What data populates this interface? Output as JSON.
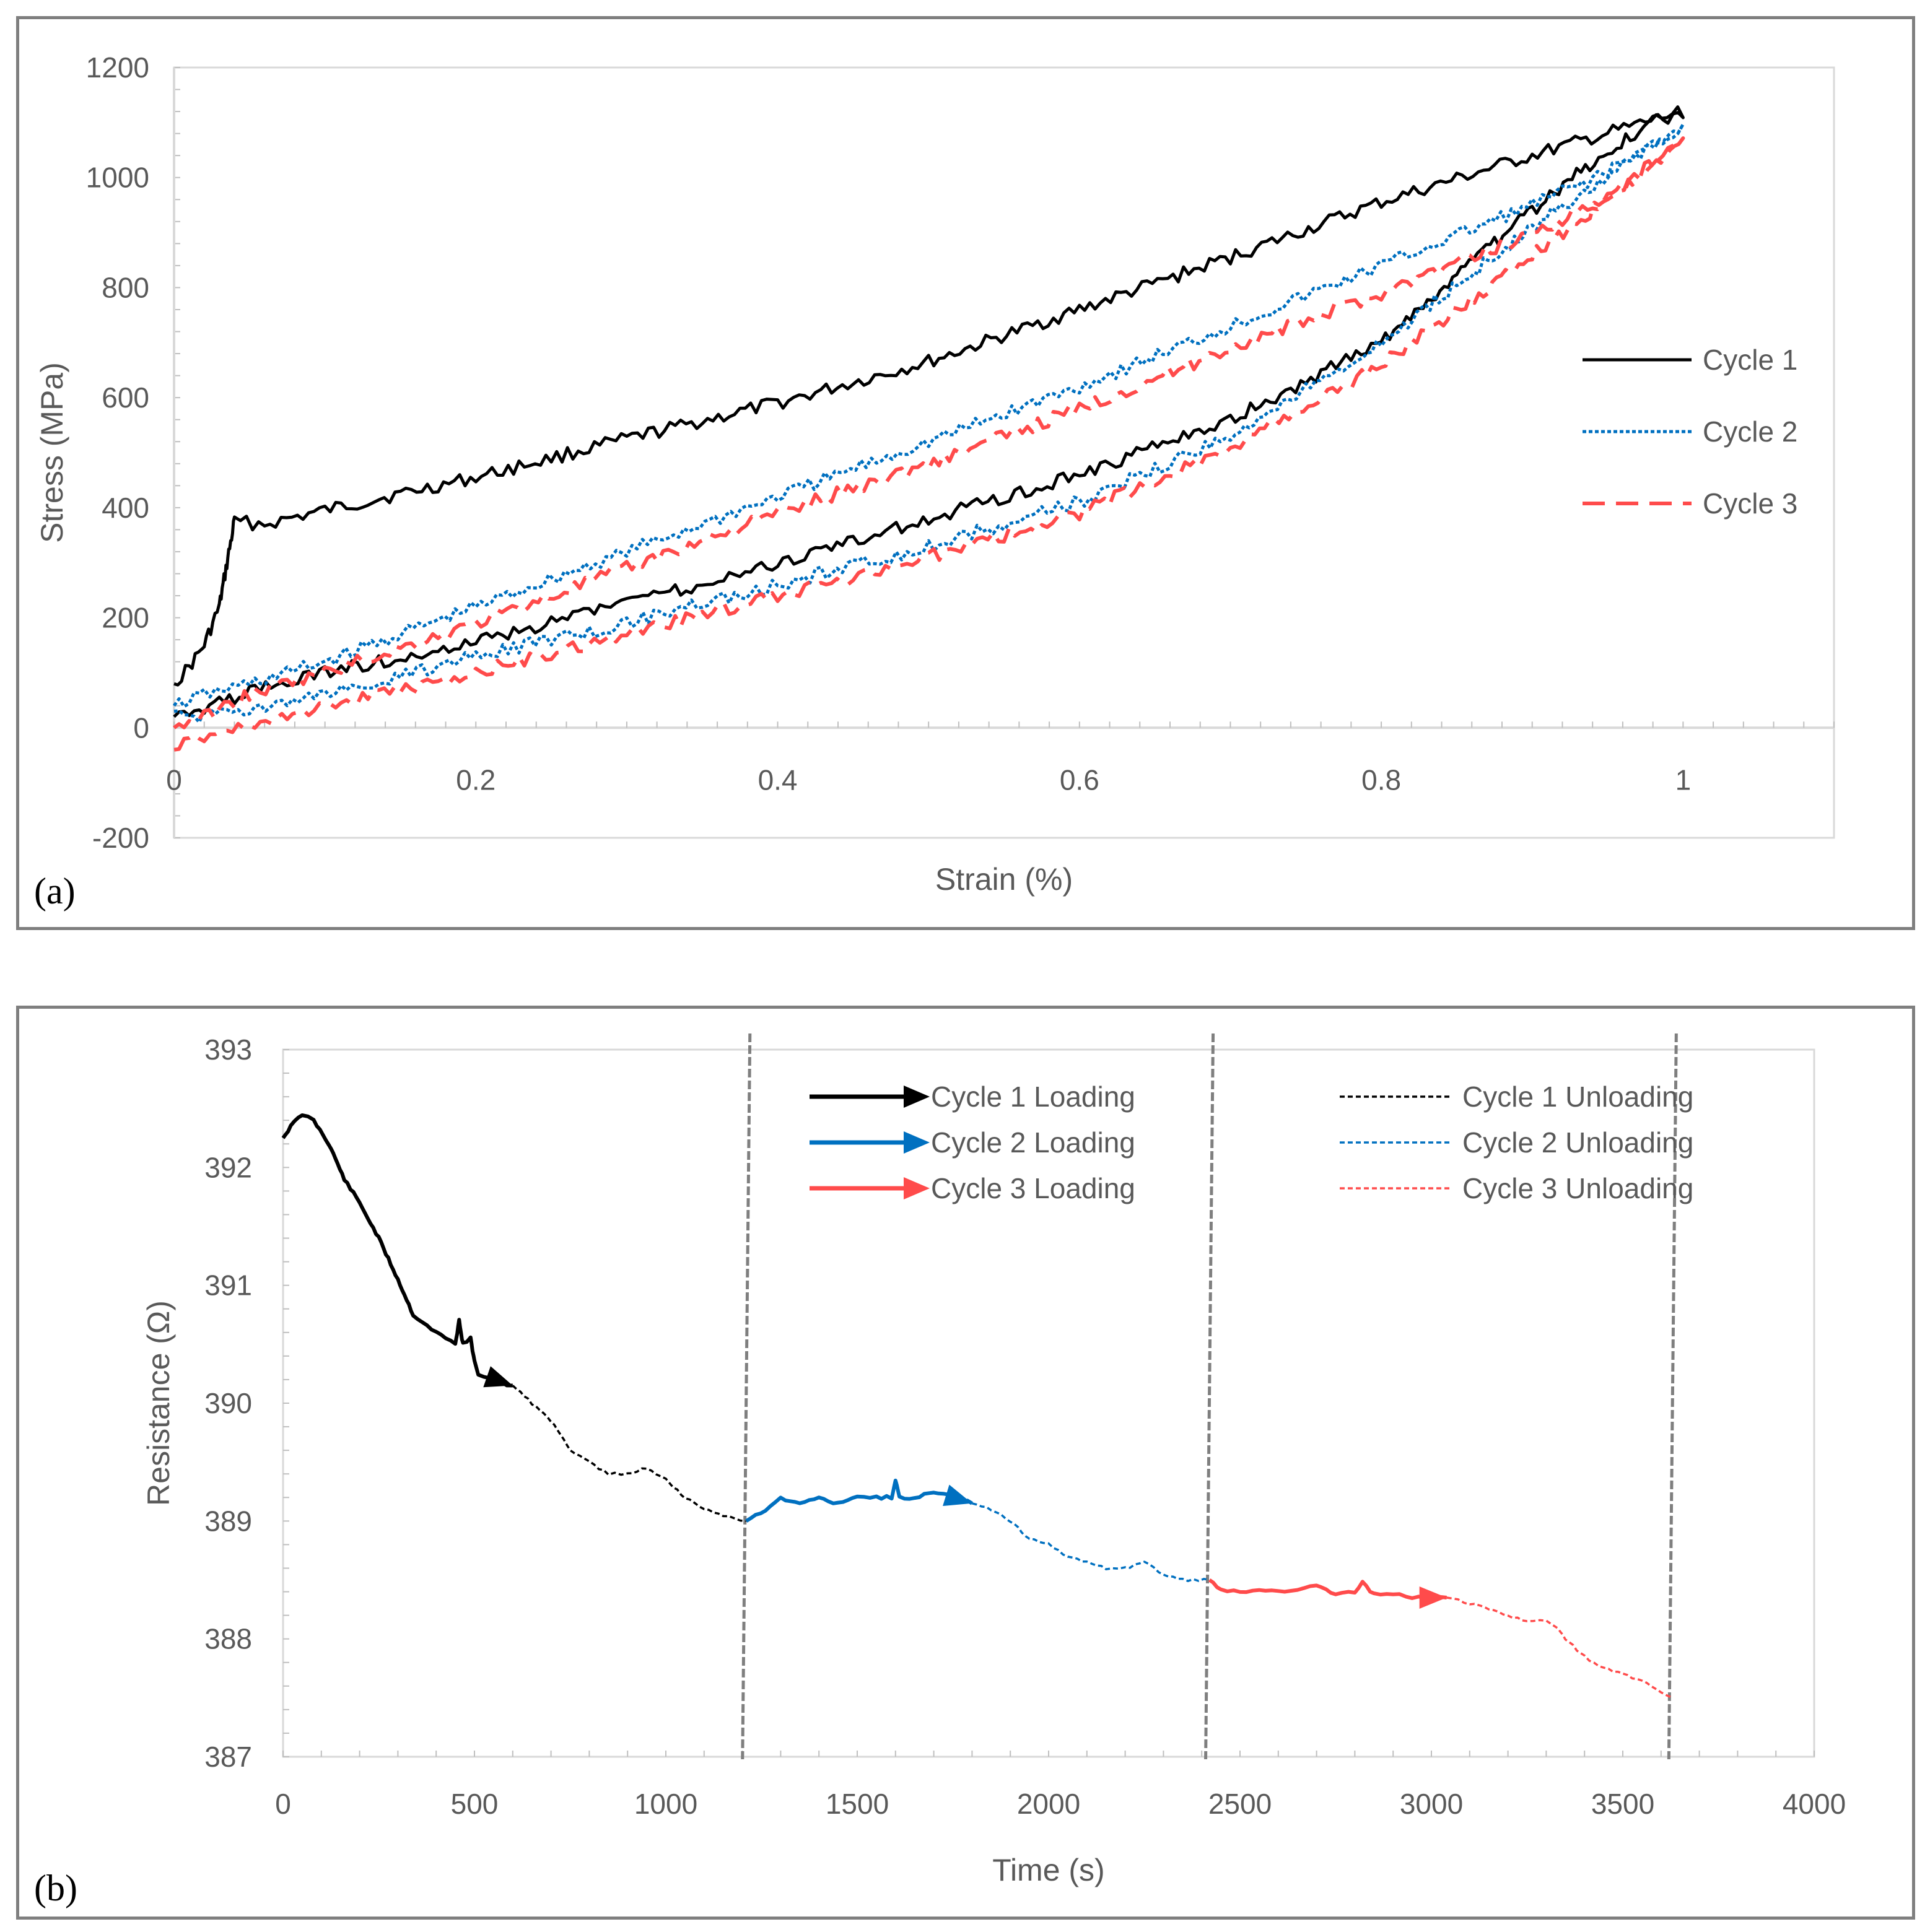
{
  "chart_data": [
    {
      "type": "line",
      "panel_label": "(a)",
      "title": "",
      "xlabel": "Strain (%)",
      "ylabel": "Stress (MPa)",
      "xlim": [
        0,
        1.1
      ],
      "ylim": [
        -200,
        1200
      ],
      "x_ticks": [
        0,
        0.2,
        0.4,
        0.6,
        0.8,
        1
      ],
      "x_tick_labels": [
        "0",
        "0.2",
        "0.4",
        "0.6",
        "0.8",
        "1"
      ],
      "y_ticks": [
        -200,
        0,
        200,
        400,
        600,
        800,
        1000,
        1200
      ],
      "y_tick_labels": [
        "-200",
        "0",
        "200",
        "400",
        "600",
        "800",
        "1000",
        "1200"
      ],
      "legend_position": "right",
      "series": [
        {
          "name": "Cycle 1",
          "color": "#000000",
          "style": "solid",
          "x": [
            0,
            0.01,
            0.02,
            0.03,
            0.04,
            0.06,
            0.1,
            0.2,
            0.3,
            0.4,
            0.5,
            0.6,
            0.7,
            0.8,
            0.9,
            0.95,
            1.0,
            0.98,
            0.95,
            0.9,
            0.85,
            0.8,
            0.7,
            0.6,
            0.5,
            0.4,
            0.3,
            0.2,
            0.1,
            0.05,
            0.02,
            0
          ],
          "y": [
            80,
            110,
            150,
            220,
            375,
            370,
            395,
            455,
            525,
            590,
            665,
            760,
            855,
            955,
            1040,
            1080,
            1120,
            1100,
            1050,
            940,
            820,
            700,
            560,
            460,
            380,
            300,
            225,
            155,
            100,
            65,
            35,
            20
          ]
        },
        {
          "name": "Cycle 2",
          "color": "#0070c0",
          "style": "dotted",
          "x": [
            0,
            0.02,
            0.05,
            0.1,
            0.2,
            0.3,
            0.4,
            0.5,
            0.6,
            0.7,
            0.8,
            0.9,
            0.95,
            1.0,
            0.98,
            0.95,
            0.9,
            0.8,
            0.7,
            0.6,
            0.5,
            0.4,
            0.3,
            0.2,
            0.1,
            0.05,
            0.02,
            0
          ],
          "y": [
            40,
            60,
            80,
            120,
            220,
            320,
            420,
            520,
            620,
            730,
            840,
            950,
            1010,
            1090,
            1060,
            1000,
            910,
            700,
            530,
            410,
            330,
            260,
            190,
            130,
            60,
            30,
            20,
            30
          ]
        },
        {
          "name": "Cycle 3",
          "color": "#ff4b4b",
          "style": "dashed",
          "x": [
            0,
            0.02,
            0.05,
            0.1,
            0.2,
            0.3,
            0.4,
            0.5,
            0.6,
            0.7,
            0.8,
            0.9,
            0.95,
            1.0,
            0.98,
            0.95,
            0.9,
            0.8,
            0.7,
            0.6,
            0.5,
            0.4,
            0.3,
            0.2,
            0.1,
            0.05,
            0.02,
            0
          ],
          "y": [
            0,
            20,
            60,
            100,
            190,
            290,
            390,
            480,
            580,
            690,
            790,
            900,
            960,
            1060,
            1030,
            960,
            860,
            660,
            510,
            390,
            310,
            240,
            170,
            100,
            40,
            0,
            -15,
            -40
          ]
        }
      ]
    },
    {
      "type": "line",
      "panel_label": "(b)",
      "title": "",
      "xlabel": "Time (s)",
      "ylabel": "Resistance (Ω)",
      "xlim": [
        0,
        4000
      ],
      "ylim": [
        387,
        393
      ],
      "x_ticks": [
        0,
        500,
        1000,
        1500,
        2000,
        2500,
        3000,
        3500,
        4000
      ],
      "x_tick_labels": [
        "0",
        "500",
        "1000",
        "1500",
        "2000",
        "2500",
        "3000",
        "3500",
        "4000"
      ],
      "y_ticks": [
        387,
        388,
        389,
        390,
        391,
        392,
        393
      ],
      "y_tick_labels": [
        "387",
        "388",
        "389",
        "390",
        "391",
        "392",
        "393"
      ],
      "legend_position": "top",
      "vlines": [
        1210,
        2420,
        3630
      ],
      "series": [
        {
          "name": "Cycle 1 Loading",
          "color": "#000000",
          "style": "solid-arrow",
          "x": [
            0,
            20,
            50,
            80,
            120,
            160,
            200,
            250,
            300,
            340,
            400,
            450,
            460,
            470,
            490,
            500,
            510,
            540,
            600
          ],
          "y": [
            392.25,
            392.35,
            392.45,
            392.4,
            392.2,
            391.9,
            391.7,
            391.4,
            391.05,
            390.75,
            390.6,
            390.5,
            390.7,
            390.5,
            390.55,
            390.35,
            390.25,
            390.2,
            390.15
          ]
        },
        {
          "name": "Cycle 1 Unloading",
          "color": "#000000",
          "style": "dotted",
          "x": [
            600,
            650,
            700,
            750,
            800,
            850,
            900,
            950,
            1000,
            1050,
            1100,
            1150,
            1210
          ],
          "y": [
            390.15,
            390.0,
            389.85,
            389.6,
            389.5,
            389.4,
            389.4,
            389.45,
            389.35,
            389.2,
            389.1,
            389.05,
            389.0
          ]
        },
        {
          "name": "Cycle 2 Loading",
          "color": "#0070c0",
          "style": "solid-arrow",
          "x": [
            1210,
            1260,
            1300,
            1350,
            1400,
            1450,
            1500,
            1550,
            1590,
            1600,
            1610,
            1650,
            1700,
            1750,
            1800
          ],
          "y": [
            389.0,
            389.1,
            389.2,
            389.15,
            389.2,
            389.15,
            389.2,
            389.2,
            389.2,
            389.35,
            389.2,
            389.2,
            389.25,
            389.2,
            389.15
          ]
        },
        {
          "name": "Cycle 2 Unloading",
          "color": "#0070c0",
          "style": "dotted",
          "x": [
            1800,
            1850,
            1900,
            1950,
            2000,
            2050,
            2100,
            2150,
            2200,
            2250,
            2300,
            2350,
            2420
          ],
          "y": [
            389.15,
            389.1,
            389.0,
            388.85,
            388.8,
            388.7,
            388.65,
            388.6,
            388.6,
            388.65,
            388.55,
            388.5,
            388.5
          ]
        },
        {
          "name": "Cycle 3 Loading",
          "color": "#ff4b4b",
          "style": "solid-arrow",
          "x": [
            2420,
            2450,
            2500,
            2550,
            2600,
            2650,
            2700,
            2750,
            2800,
            2820,
            2850,
            2900,
            2950,
            3000,
            3040
          ],
          "y": [
            388.5,
            388.42,
            388.4,
            388.42,
            388.4,
            388.42,
            388.45,
            388.38,
            388.4,
            388.48,
            388.38,
            388.38,
            388.35,
            388.35,
            388.35
          ]
        },
        {
          "name": "Cycle 3 Unloading",
          "color": "#ff4b4b",
          "style": "dotted",
          "x": [
            3040,
            3100,
            3150,
            3200,
            3250,
            3300,
            3330,
            3350,
            3400,
            3450,
            3500,
            3550,
            3600,
            3630
          ],
          "y": [
            388.35,
            388.3,
            388.25,
            388.2,
            388.15,
            388.15,
            388.1,
            388.0,
            387.85,
            387.75,
            387.7,
            387.65,
            387.55,
            387.5
          ]
        }
      ]
    }
  ]
}
